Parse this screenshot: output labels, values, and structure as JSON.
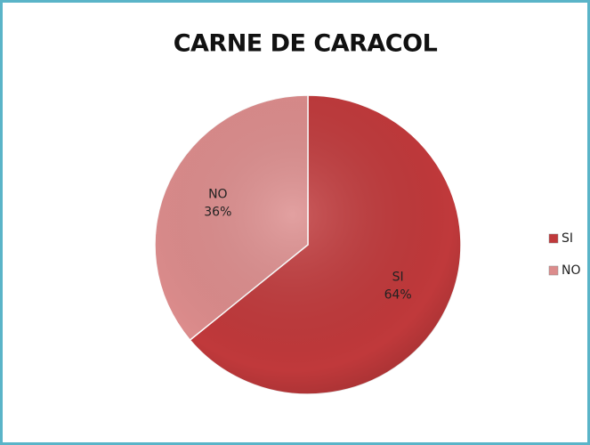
{
  "chart_data": {
    "type": "pie",
    "title": "CARNE DE CARACOL",
    "categories": [
      "SI",
      "NO"
    ],
    "values": [
      64,
      36
    ],
    "value_labels": [
      "64%",
      "36%"
    ],
    "colors": [
      "#c0393b",
      "#dc8c8c"
    ],
    "legend": "right"
  }
}
